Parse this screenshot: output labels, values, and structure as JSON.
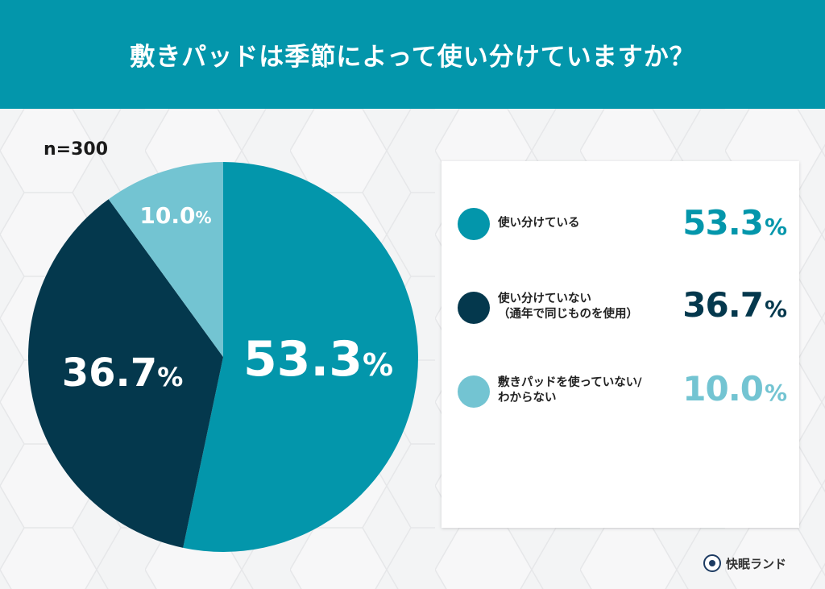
{
  "header": {
    "title": "敷きパッドは季節によって使い分けていますか？"
  },
  "sample": {
    "label": "n=300"
  },
  "colors": {
    "header_bg": "#0396ab",
    "series1": "#0396ab",
    "series2": "#04384d",
    "series3": "#73c4d2"
  },
  "pie_labels": [
    {
      "value": "53.3",
      "unit": "%"
    },
    {
      "value": "36.7",
      "unit": "%"
    },
    {
      "value": "10.0",
      "unit": "%"
    }
  ],
  "legend": {
    "items": [
      {
        "line1": "使い分けている",
        "line2": "",
        "value": "53.3",
        "unit": "%"
      },
      {
        "line1": "使い分けていない",
        "line2": "（通年で同じものを使用）",
        "value": "36.7",
        "unit": "%"
      },
      {
        "line1": "敷きパッドを使っていない/",
        "line2": "わからない",
        "value": "10.0",
        "unit": "%"
      }
    ]
  },
  "brand": {
    "name": "快眠ランド"
  },
  "chart_data": {
    "type": "pie",
    "title": "敷きパッドは季節によって使い分けていますか？",
    "subtitle": "n=300",
    "categories": [
      "使い分けている",
      "使い分けていない（通年で同じものを使用）",
      "敷きパッドを使っていない/わからない"
    ],
    "values": [
      53.3,
      36.7,
      10.0
    ],
    "unit": "%",
    "colors": [
      "#0396ab",
      "#04384d",
      "#73c4d2"
    ],
    "start_angle": "12 o'clock, clockwise",
    "legend_position": "right"
  }
}
